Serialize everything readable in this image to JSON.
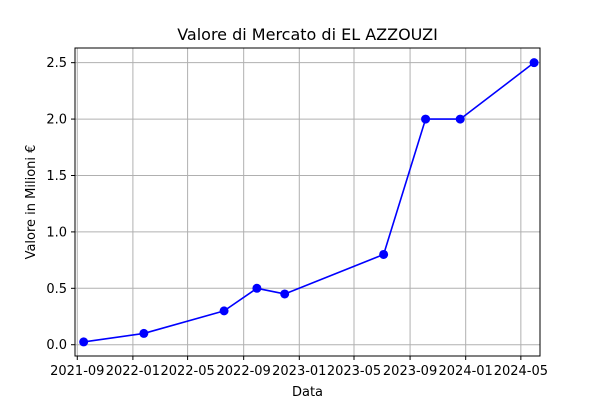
{
  "chart_data": {
    "type": "line",
    "title": "Valore di Mercato di EL AZZOUZI",
    "xlabel": "Data",
    "ylabel": "Valore in Milioni €",
    "x_scale": "date",
    "xlim": [
      "2021-08-27",
      "2024-06-12"
    ],
    "ylim": [
      -0.1,
      2.63
    ],
    "grid": true,
    "legend": "none",
    "x_ticks": [
      {
        "date": "2021-09-01",
        "label": "2021-09"
      },
      {
        "date": "2022-01-01",
        "label": "2022-01"
      },
      {
        "date": "2022-05-01",
        "label": "2022-05"
      },
      {
        "date": "2022-09-01",
        "label": "2022-09"
      },
      {
        "date": "2023-01-01",
        "label": "2023-01"
      },
      {
        "date": "2023-05-01",
        "label": "2023-05"
      },
      {
        "date": "2023-09-01",
        "label": "2023-09"
      },
      {
        "date": "2024-01-01",
        "label": "2024-01"
      },
      {
        "date": "2024-05-01",
        "label": "2024-05"
      }
    ],
    "y_ticks": [
      {
        "value": 0.0,
        "label": "0.0"
      },
      {
        "value": 0.5,
        "label": "0.5"
      },
      {
        "value": 1.0,
        "label": "1.0"
      },
      {
        "value": 1.5,
        "label": "1.5"
      },
      {
        "value": 2.0,
        "label": "2.0"
      },
      {
        "value": 2.5,
        "label": "2.5"
      }
    ],
    "series": [
      {
        "color": "#0000ff",
        "marker": "circle",
        "points": [
          {
            "x": "2021-09-15",
            "y": 0.025
          },
          {
            "x": "2022-01-25",
            "y": 0.1
          },
          {
            "x": "2022-07-20",
            "y": 0.3
          },
          {
            "x": "2022-09-30",
            "y": 0.5
          },
          {
            "x": "2022-11-30",
            "y": 0.45
          },
          {
            "x": "2023-07-05",
            "y": 0.8
          },
          {
            "x": "2023-10-05",
            "y": 2.0
          },
          {
            "x": "2023-12-20",
            "y": 2.0
          },
          {
            "x": "2024-05-30",
            "y": 2.5
          }
        ]
      }
    ]
  }
}
